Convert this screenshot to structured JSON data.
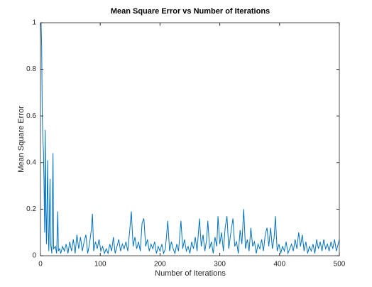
{
  "chart_data": {
    "type": "line",
    "title": "Mean Square Error vs Number of Iterations",
    "x_label": "Number of Iterations",
    "y_label": "Mean Square Error",
    "xlim": [
      0,
      500
    ],
    "xticks": [
      0,
      100,
      200,
      300,
      400,
      500
    ],
    "ylim": [
      0,
      1
    ],
    "yticks": [
      0,
      0.2,
      0.4,
      0.6,
      0.8,
      1
    ],
    "grid": false,
    "series": [
      {
        "name": "Mean Square Error",
        "color": "#0072bd",
        "x": [
          1,
          2,
          3,
          4,
          5,
          6,
          7,
          8,
          9,
          10,
          12,
          13,
          14,
          16,
          17,
          19,
          21,
          22,
          25,
          27,
          29,
          30,
          32,
          34,
          37,
          40,
          43,
          46,
          49,
          52,
          55,
          58,
          61,
          64,
          67,
          70,
          73,
          76,
          79,
          82,
          85,
          87,
          89,
          92,
          95,
          98,
          101,
          104,
          107,
          110,
          113,
          116,
          119,
          122,
          125,
          128,
          131,
          134,
          137,
          140,
          143,
          146,
          149,
          152,
          155,
          158,
          161,
          164,
          167,
          170,
          173,
          176,
          179,
          182,
          185,
          188,
          191,
          194,
          197,
          200,
          203,
          206,
          209,
          213,
          216,
          219,
          222,
          225,
          228,
          231,
          235,
          238,
          241,
          244,
          247,
          250,
          253,
          256,
          259,
          262,
          266,
          269,
          272,
          275,
          278,
          280,
          283,
          286,
          289,
          292,
          295,
          297,
          300,
          303,
          306,
          309,
          312,
          315,
          318,
          322,
          325,
          328,
          331,
          334,
          337,
          340,
          343,
          346,
          349,
          352,
          355,
          358,
          361,
          364,
          367,
          370,
          373,
          376,
          379,
          382,
          385,
          388,
          391,
          393,
          396,
          399,
          402,
          405,
          408,
          411,
          414,
          417,
          420,
          423,
          426,
          429,
          432,
          435,
          438,
          441,
          444,
          447,
          450,
          453,
          456,
          459,
          462,
          465,
          468,
          471,
          474,
          477,
          480,
          483,
          486,
          489,
          492,
          495,
          498,
          500
        ],
        "values": [
          1.0,
          0.9,
          0.6,
          0.5,
          0.45,
          0.3,
          0.1,
          0.54,
          0.2,
          0.05,
          0.41,
          0.1,
          0.02,
          0.33,
          0.05,
          0.01,
          0.44,
          0.03,
          0.04,
          0.01,
          0.19,
          0.02,
          0.03,
          0.01,
          0.04,
          0.02,
          0.05,
          0.01,
          0.06,
          0.02,
          0.07,
          0.01,
          0.09,
          0.03,
          0.08,
          0.02,
          0.06,
          0.09,
          0.01,
          0.05,
          0.11,
          0.18,
          0.02,
          0.06,
          0.03,
          0.07,
          0.02,
          0.04,
          0.01,
          0.03,
          0.01,
          0.05,
          0.02,
          0.08,
          0.01,
          0.04,
          0.07,
          0.02,
          0.05,
          0.03,
          0.06,
          0.02,
          0.1,
          0.19,
          0.04,
          0.08,
          0.03,
          0.06,
          0.02,
          0.14,
          0.16,
          0.04,
          0.07,
          0.02,
          0.05,
          0.03,
          0.06,
          0.01,
          0.04,
          0.02,
          0.05,
          0.01,
          0.03,
          0.15,
          0.02,
          0.06,
          0.03,
          0.01,
          0.05,
          0.02,
          0.15,
          0.03,
          0.07,
          0.02,
          0.04,
          0.01,
          0.06,
          0.03,
          0.08,
          0.02,
          0.16,
          0.04,
          0.09,
          0.02,
          0.07,
          0.15,
          0.03,
          0.06,
          0.01,
          0.08,
          0.04,
          0.17,
          0.05,
          0.1,
          0.02,
          0.12,
          0.17,
          0.03,
          0.09,
          0.16,
          0.04,
          0.06,
          0.01,
          0.11,
          0.05,
          0.2,
          0.03,
          0.07,
          0.02,
          0.12,
          0.04,
          0.06,
          0.01,
          0.05,
          0.03,
          0.07,
          0.02,
          0.09,
          0.12,
          0.04,
          0.12,
          0.03,
          0.08,
          0.17,
          0.02,
          0.05,
          0.01,
          0.04,
          0.02,
          0.06,
          0.01,
          0.03,
          0.05,
          0.02,
          0.07,
          0.03,
          0.1,
          0.04,
          0.09,
          0.02,
          0.06,
          0.01,
          0.04,
          0.02,
          0.05,
          0.01,
          0.07,
          0.03,
          0.06,
          0.02,
          0.07,
          0.03,
          0.05,
          0.02,
          0.06,
          0.03,
          0.07,
          0.02,
          0.05,
          0.07
        ]
      }
    ]
  }
}
